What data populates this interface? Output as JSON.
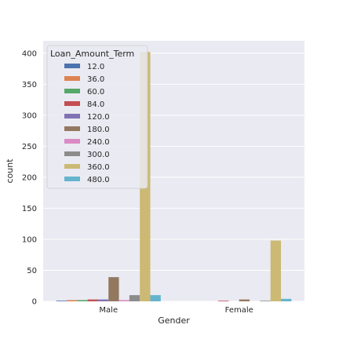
{
  "chart_data": {
    "type": "bar",
    "xlabel": "Gender",
    "ylabel": "count",
    "categories": [
      "Male",
      "Female"
    ],
    "ylim": [
      0,
      420
    ],
    "yticks": [
      0,
      50,
      100,
      150,
      200,
      250,
      300,
      350,
      400
    ],
    "grid": true,
    "legend": {
      "title": "Loan_Amount_Term",
      "placement": "top-left"
    },
    "series": [
      {
        "name": "12.0",
        "color": "#4c72b0",
        "values": [
          1,
          0
        ]
      },
      {
        "name": "36.0",
        "color": "#dd8452",
        "values": [
          2,
          0
        ]
      },
      {
        "name": "60.0",
        "color": "#55a868",
        "values": [
          2,
          0
        ]
      },
      {
        "name": "84.0",
        "color": "#c44e52",
        "values": [
          3,
          1
        ]
      },
      {
        "name": "120.0",
        "color": "#8172b3",
        "values": [
          3,
          0
        ]
      },
      {
        "name": "180.0",
        "color": "#937860",
        "values": [
          39,
          3
        ]
      },
      {
        "name": "240.0",
        "color": "#da8bc3",
        "values": [
          2,
          0
        ]
      },
      {
        "name": "300.0",
        "color": "#8c8c8c",
        "values": [
          10,
          1
        ]
      },
      {
        "name": "360.0",
        "color": "#ccb974",
        "values": [
          402,
          98
        ]
      },
      {
        "name": "480.0",
        "color": "#64b5cd",
        "values": [
          10,
          4
        ]
      }
    ]
  }
}
